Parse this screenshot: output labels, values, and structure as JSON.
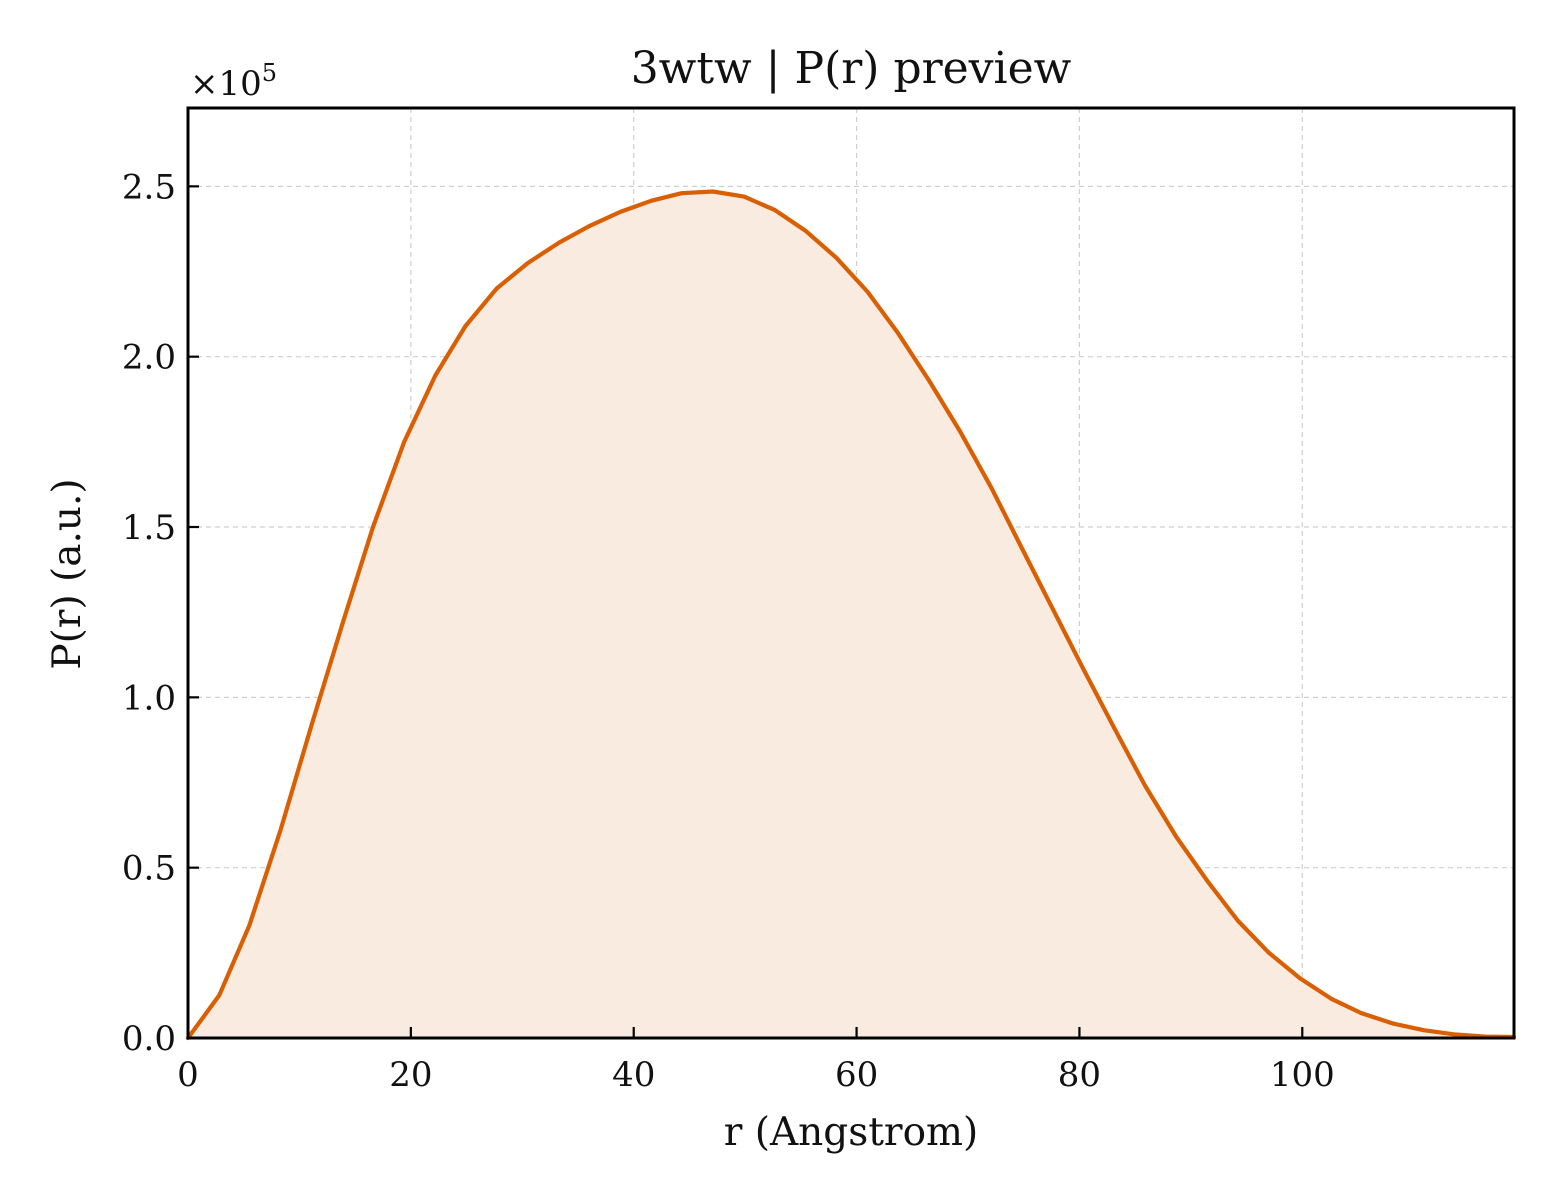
{
  "chart_data": {
    "type": "area",
    "title": "3wtw | P(r) preview",
    "xlabel": "r (Angstrom)",
    "ylabel": "P(r) (a.u.)",
    "y_multiplier_prefix": "×10",
    "y_multiplier_exponent": "5",
    "xlim": [
      0,
      119
    ],
    "ylim": [
      0,
      2.73
    ],
    "x_ticks": [
      0,
      20,
      40,
      60,
      80,
      100
    ],
    "x_tick_labels": [
      "0",
      "20",
      "40",
      "60",
      "80",
      "100"
    ],
    "y_ticks": [
      0,
      0.5,
      1.0,
      1.5,
      2.0,
      2.5
    ],
    "y_tick_labels": [
      "0.0",
      "0.5",
      "1.0",
      "1.5",
      "2.0",
      "2.5"
    ],
    "grid": true,
    "legend": "none",
    "line_color": "#d95f02",
    "fill_color": "#f9ebe0",
    "series": [
      {
        "x": [
          0,
          2.8,
          5.5,
          8.3,
          11.1,
          13.9,
          16.6,
          19.4,
          22.2,
          24.9,
          27.7,
          30.5,
          33.3,
          36.0,
          38.8,
          41.6,
          44.3,
          47.1,
          49.9,
          52.7,
          55.4,
          58.2,
          61.0,
          63.7,
          66.5,
          69.3,
          72.1,
          74.8,
          77.6,
          80.4,
          83.2,
          85.9,
          88.7,
          91.5,
          94.2,
          97.0,
          99.8,
          102.6,
          105.3,
          108.1,
          110.9,
          113.6,
          116.4,
          119.0
        ],
        "y": [
          0.0,
          0.125,
          0.33,
          0.61,
          0.92,
          1.22,
          1.5,
          1.75,
          1.945,
          2.09,
          2.2,
          2.275,
          2.335,
          2.383,
          2.425,
          2.458,
          2.48,
          2.485,
          2.47,
          2.43,
          2.37,
          2.29,
          2.19,
          2.07,
          1.93,
          1.78,
          1.615,
          1.44,
          1.26,
          1.08,
          0.905,
          0.74,
          0.59,
          0.46,
          0.345,
          0.25,
          0.175,
          0.115,
          0.073,
          0.043,
          0.023,
          0.011,
          0.004,
          0.003
        ]
      }
    ]
  }
}
